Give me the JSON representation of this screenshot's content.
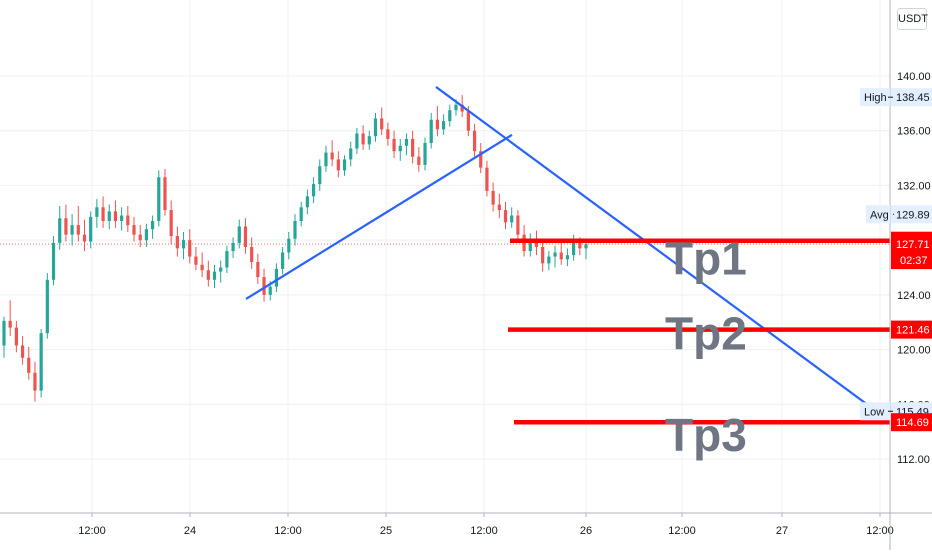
{
  "currency": "USDT",
  "colors": {
    "up": "#26a69a",
    "down": "#ef5350",
    "trendline": "#2962ff",
    "target": "#ff0000",
    "grid": "#eef0f3",
    "axis_text": "#131722",
    "tp_text": "#6f7583"
  },
  "chart_data": {
    "type": "candlestick",
    "symbol_quote": "USDT",
    "x_ticks": [
      "12:00",
      "24",
      "12:00",
      "25",
      "12:00",
      "26",
      "12:00",
      "27",
      "12:00"
    ],
    "y_ticks": [
      "112.00",
      "116.00",
      "120.00",
      "124.00",
      "128.00",
      "132.00",
      "136.00",
      "140.00"
    ],
    "ylim": [
      109,
      144
    ],
    "xlim": [
      0,
      912
    ],
    "grid": true,
    "price_markers": [
      {
        "label": "High",
        "value": "138.45",
        "y": 138.45,
        "style": "label"
      },
      {
        "label": "Avg",
        "value": "129.89",
        "y": 129.89,
        "style": "label"
      },
      {
        "label": "",
        "value": "127.96",
        "y": 127.96,
        "style": "red"
      },
      {
        "label": "",
        "value": "127.71",
        "y": 127.71,
        "style": "red",
        "sub": "02:37"
      },
      {
        "label": "",
        "value": "121.46",
        "y": 121.46,
        "style": "red"
      },
      {
        "label": "Low",
        "value": "115.49",
        "y": 115.49,
        "style": "label"
      },
      {
        "label": "",
        "value": "114.69",
        "y": 114.69,
        "style": "red"
      }
    ],
    "targets": [
      {
        "name": "Tp1",
        "price": 127.96
      },
      {
        "name": "Tp2",
        "price": 121.46
      },
      {
        "name": "Tp3",
        "price": 114.69
      }
    ],
    "trendlines": [
      {
        "from": {
          "t": 246,
          "p": 123.7
        },
        "to": {
          "t": 512,
          "p": 135.7
        }
      },
      {
        "from": {
          "t": 436,
          "p": 139.2
        },
        "to": {
          "t": 880,
          "p": 115.3
        }
      }
    ],
    "series": [
      {
        "values": [
          [
            120.3,
            122.4,
            119.4,
            122.1
          ],
          [
            122.1,
            123.6,
            121.0,
            121.6
          ],
          [
            121.6,
            122.1,
            119.8,
            120.3
          ],
          [
            120.3,
            121.0,
            118.9,
            119.4
          ],
          [
            119.4,
            120.2,
            117.8,
            118.3
          ],
          [
            118.3,
            119.1,
            116.2,
            117.0
          ],
          [
            117.0,
            121.5,
            116.5,
            121.2
          ],
          [
            121.2,
            125.6,
            120.8,
            125.1
          ],
          [
            125.1,
            128.3,
            124.7,
            127.8
          ],
          [
            127.8,
            130.5,
            127.3,
            129.6
          ],
          [
            129.6,
            130.6,
            127.9,
            128.4
          ],
          [
            128.4,
            129.9,
            127.6,
            129.1
          ],
          [
            129.1,
            130.5,
            127.9,
            128.4
          ],
          [
            128.4,
            129.5,
            127.2,
            127.9
          ],
          [
            127.9,
            130.1,
            127.4,
            129.7
          ],
          [
            129.7,
            131.0,
            128.9,
            130.4
          ],
          [
            130.4,
            131.2,
            128.9,
            129.4
          ],
          [
            129.4,
            130.6,
            128.8,
            130.1
          ],
          [
            130.1,
            130.9,
            128.9,
            129.4
          ],
          [
            129.4,
            130.4,
            128.7,
            129.8
          ],
          [
            129.8,
            130.5,
            128.6,
            129.1
          ],
          [
            129.1,
            129.7,
            127.9,
            128.4
          ],
          [
            128.4,
            129.1,
            127.5,
            128.0
          ],
          [
            128.0,
            129.2,
            127.5,
            128.8
          ],
          [
            128.8,
            129.8,
            128.1,
            129.4
          ],
          [
            129.4,
            133.1,
            129.0,
            132.6
          ],
          [
            132.6,
            133.2,
            129.8,
            130.2
          ],
          [
            130.2,
            130.9,
            127.7,
            128.3
          ],
          [
            128.3,
            129.0,
            126.8,
            127.4
          ],
          [
            127.4,
            128.6,
            126.6,
            128.0
          ],
          [
            128.0,
            128.8,
            126.3,
            126.8
          ],
          [
            126.8,
            127.5,
            125.8,
            126.2
          ],
          [
            126.2,
            127.1,
            125.3,
            125.8
          ],
          [
            125.8,
            126.5,
            124.6,
            125.1
          ],
          [
            125.1,
            126.2,
            124.5,
            125.7
          ],
          [
            125.7,
            126.5,
            124.9,
            126.0
          ],
          [
            126.0,
            127.6,
            125.6,
            127.2
          ],
          [
            127.2,
            128.2,
            126.7,
            127.8
          ],
          [
            127.8,
            129.5,
            127.4,
            129.0
          ],
          [
            129.0,
            129.6,
            127.0,
            127.5
          ],
          [
            127.5,
            128.2,
            125.9,
            126.4
          ],
          [
            126.4,
            127.0,
            124.8,
            125.3
          ],
          [
            125.3,
            125.9,
            123.5,
            124.0
          ],
          [
            124.0,
            125.0,
            123.6,
            124.6
          ],
          [
            124.6,
            126.3,
            124.2,
            125.9
          ],
          [
            125.9,
            127.5,
            125.5,
            127.1
          ],
          [
            127.1,
            128.6,
            126.6,
            128.1
          ],
          [
            128.1,
            129.9,
            127.6,
            129.4
          ],
          [
            129.4,
            130.8,
            129.0,
            130.4
          ],
          [
            130.4,
            131.7,
            129.9,
            131.2
          ],
          [
            131.2,
            132.6,
            130.7,
            132.1
          ],
          [
            132.1,
            133.9,
            131.6,
            133.4
          ],
          [
            133.4,
            134.9,
            133.0,
            134.4
          ],
          [
            134.4,
            135.3,
            133.4,
            133.9
          ],
          [
            133.9,
            134.5,
            132.6,
            133.1
          ],
          [
            133.1,
            134.2,
            132.7,
            133.9
          ],
          [
            133.9,
            135.2,
            133.4,
            134.7
          ],
          [
            134.7,
            136.2,
            134.3,
            135.8
          ],
          [
            135.8,
            136.4,
            134.6,
            135.0
          ],
          [
            135.0,
            136.0,
            134.6,
            135.6
          ],
          [
            135.6,
            137.3,
            135.2,
            136.9
          ],
          [
            136.9,
            137.7,
            135.7,
            136.1
          ],
          [
            136.1,
            136.6,
            134.9,
            135.4
          ],
          [
            135.4,
            136.0,
            134.0,
            134.5
          ],
          [
            134.5,
            135.4,
            133.8,
            134.9
          ],
          [
            134.9,
            135.8,
            134.2,
            135.4
          ],
          [
            135.4,
            136.0,
            133.6,
            134.1
          ],
          [
            134.1,
            134.8,
            133.0,
            133.5
          ],
          [
            133.5,
            135.5,
            133.1,
            135.1
          ],
          [
            135.1,
            137.3,
            134.7,
            136.8
          ],
          [
            136.8,
            137.8,
            135.6,
            136.1
          ],
          [
            136.1,
            137.2,
            135.7,
            136.7
          ],
          [
            136.7,
            137.9,
            136.3,
            137.5
          ],
          [
            137.5,
            138.3,
            137.1,
            137.9
          ],
          [
            137.9,
            138.6,
            137.0,
            137.4
          ],
          [
            137.4,
            137.8,
            135.6,
            136.0
          ],
          [
            136.0,
            136.5,
            134.1,
            134.5
          ],
          [
            134.5,
            135.1,
            132.9,
            133.3
          ],
          [
            133.3,
            133.8,
            131.2,
            131.6
          ],
          [
            131.6,
            132.2,
            130.1,
            130.6
          ],
          [
            130.6,
            131.4,
            129.6,
            130.2
          ],
          [
            130.2,
            130.8,
            128.8,
            129.3
          ],
          [
            129.3,
            130.4,
            128.9,
            129.8
          ],
          [
            129.8,
            130.2,
            128.0,
            128.4
          ],
          [
            128.4,
            129.1,
            126.8,
            127.2
          ],
          [
            127.2,
            128.5,
            126.8,
            128.1
          ],
          [
            128.1,
            128.7,
            126.9,
            127.5
          ],
          [
            127.5,
            128.1,
            125.7,
            126.3
          ],
          [
            126.3,
            127.2,
            125.8,
            126.8
          ],
          [
            126.8,
            127.6,
            126.0,
            127.1
          ],
          [
            127.1,
            127.8,
            126.2,
            126.6
          ],
          [
            126.6,
            127.4,
            126.1,
            126.9
          ],
          [
            126.9,
            128.4,
            126.5,
            127.8
          ],
          [
            127.8,
            128.2,
            126.9,
            127.4
          ],
          [
            127.4,
            128.0,
            126.6,
            127.7
          ]
        ]
      }
    ]
  }
}
